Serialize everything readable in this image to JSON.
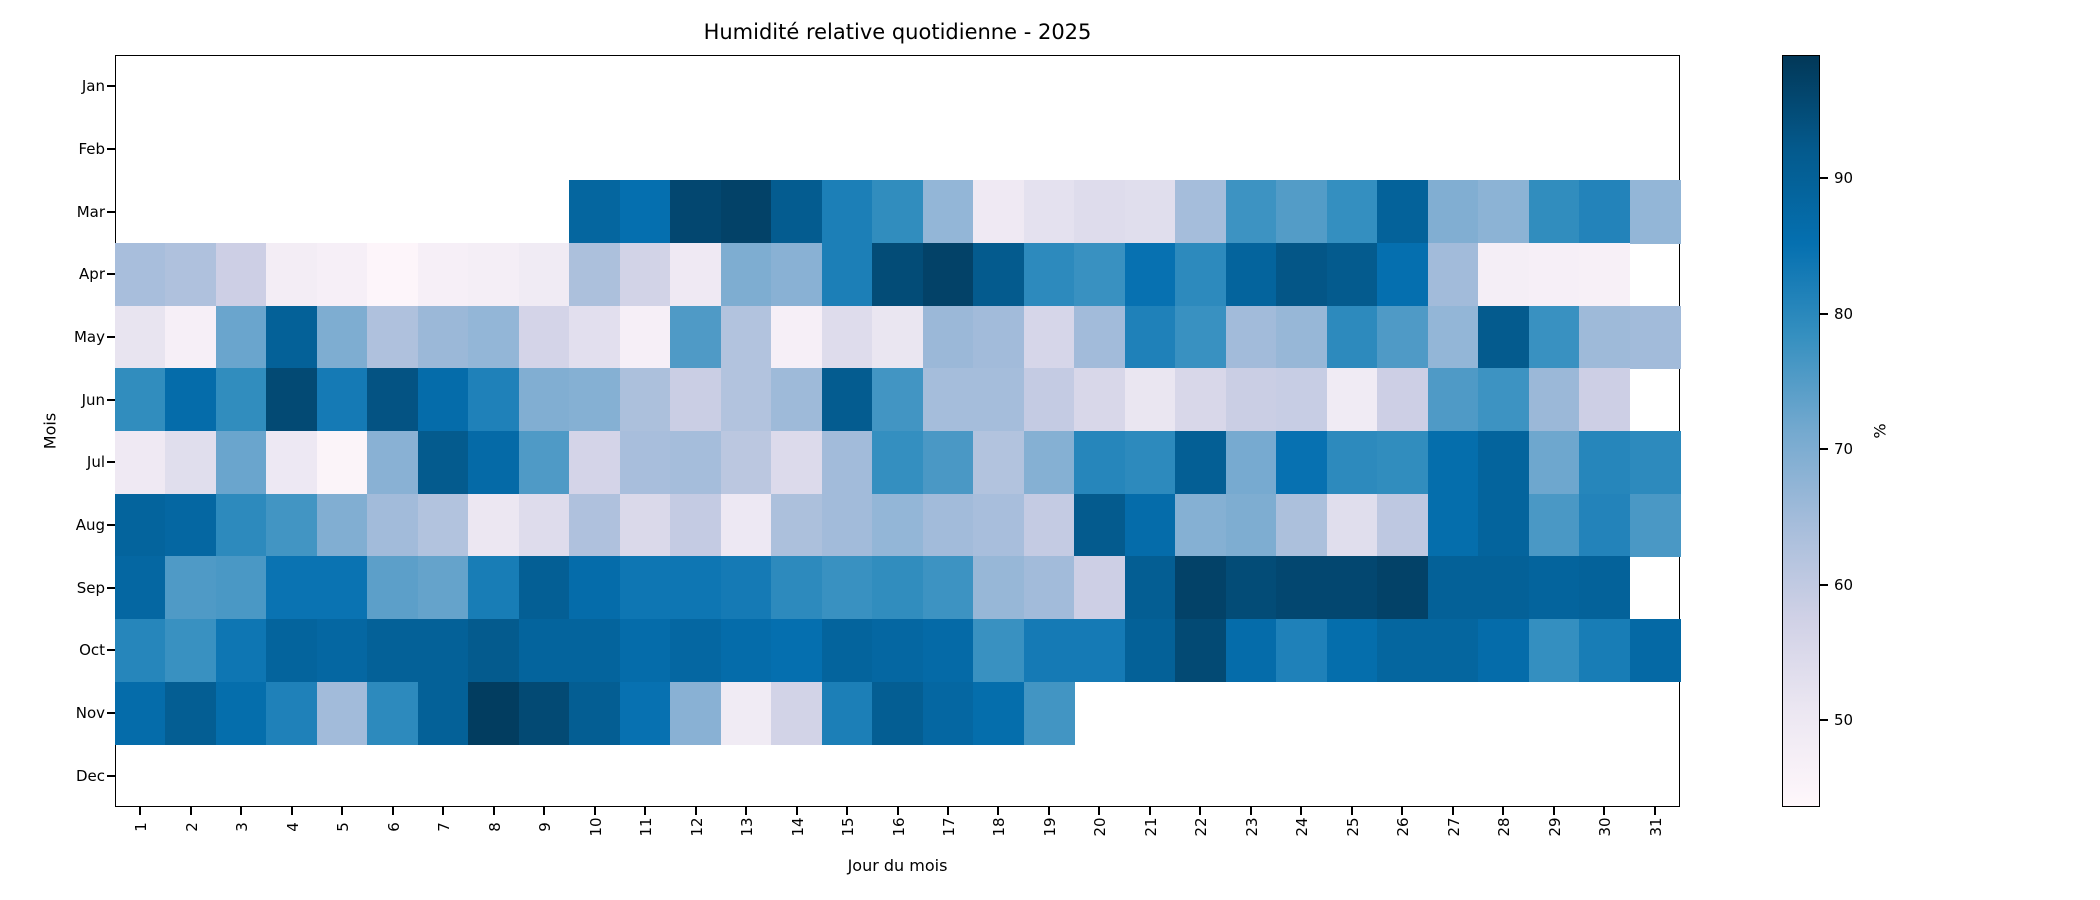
{
  "chart_data": {
    "type": "heatmap",
    "title": "Humidité relative quotidienne - 2025",
    "xlabel": "Jour du mois",
    "ylabel": "Mois",
    "x_ticks": [
      1,
      2,
      3,
      4,
      5,
      6,
      7,
      8,
      9,
      10,
      11,
      12,
      13,
      14,
      15,
      16,
      17,
      18,
      19,
      20,
      21,
      22,
      23,
      24,
      25,
      26,
      27,
      28,
      29,
      30,
      31
    ],
    "y_ticks": [
      "Jan",
      "Feb",
      "Mar",
      "Apr",
      "May",
      "Jun",
      "Jul",
      "Aug",
      "Sep",
      "Oct",
      "Nov",
      "Dec"
    ],
    "grid": false,
    "missing_color": "#ffffff",
    "colorbar": {
      "label": "%",
      "ticks": [
        50,
        60,
        70,
        80,
        90
      ],
      "vmin": 43.6,
      "vmax": 99.1,
      "colormap": "PuBu",
      "colormap_stops": [
        "#fff7fb",
        "#ece7f2",
        "#d0d1e6",
        "#a6bddb",
        "#74a9cf",
        "#3690c0",
        "#0570b0",
        "#045a8d",
        "#023858"
      ]
    },
    "values": [
      [
        null,
        null,
        null,
        null,
        null,
        null,
        null,
        null,
        null,
        null,
        null,
        null,
        null,
        null,
        null,
        null,
        null,
        null,
        null,
        null,
        null,
        null,
        null,
        null,
        null,
        null,
        null,
        null,
        null,
        null,
        null
      ],
      [
        null,
        null,
        null,
        null,
        null,
        null,
        null,
        null,
        null,
        null,
        null,
        null,
        null,
        null,
        null,
        null,
        null,
        null,
        null,
        null,
        null,
        null,
        null,
        null,
        null,
        null,
        null,
        null,
        null,
        null,
        null
      ],
      [
        null,
        null,
        null,
        null,
        null,
        null,
        null,
        null,
        null,
        88.5,
        85.5,
        96,
        97,
        91.5,
        82,
        79,
        67,
        49.5,
        52.5,
        54,
        53.5,
        64.5,
        77.5,
        75,
        78.5,
        89.5,
        69.5,
        68,
        79,
        81,
        67
      ],
      [
        64,
        63,
        58,
        48,
        47,
        44.5,
        47,
        47.5,
        49,
        63.5,
        57,
        49.5,
        70,
        68.5,
        82,
        95,
        97,
        92,
        79.5,
        78,
        85,
        79.5,
        89,
        93,
        92,
        85.5,
        65,
        47.5,
        47,
        46.5,
        null
      ],
      [
        51.5,
        47,
        72.5,
        90,
        70,
        63,
        66,
        67,
        56.5,
        53,
        47,
        75.5,
        62.5,
        47,
        54,
        51,
        66,
        65,
        56,
        65,
        81.5,
        78,
        65,
        66.5,
        79.5,
        75.5,
        67,
        92,
        78,
        65.5,
        65
      ],
      [
        79,
        86.5,
        79,
        95.5,
        83,
        93.5,
        86.5,
        81.5,
        69.5,
        69,
        63.5,
        58.5,
        62.5,
        65.5,
        91.5,
        77,
        64.5,
        64.5,
        59.5,
        55.5,
        51,
        55.5,
        58.5,
        59,
        49,
        58,
        75.5,
        77.5,
        66,
        58,
        null
      ],
      [
        49.5,
        53.5,
        72.5,
        50,
        45,
        68.5,
        92,
        87,
        75.5,
        56.5,
        64,
        64.5,
        61,
        54.5,
        65,
        78.5,
        76,
        62.5,
        69,
        80.5,
        79.5,
        90.5,
        71,
        85,
        79.5,
        79,
        86,
        89,
        72,
        80.5,
        79.5
      ],
      [
        89,
        88,
        79.5,
        77,
        69.5,
        65,
        62.5,
        50.5,
        54,
        63,
        55,
        59.5,
        50,
        63.5,
        65,
        67,
        65,
        64,
        59.5,
        92,
        86.5,
        69,
        70,
        63.5,
        53.5,
        60.5,
        86,
        89,
        76,
        81,
        76
      ],
      [
        88,
        75.5,
        76,
        84.5,
        84.5,
        74,
        73,
        82.5,
        90.5,
        86.5,
        84,
        84,
        83,
        79.5,
        78,
        79,
        77.5,
        66.5,
        65,
        58,
        91,
        97,
        95,
        96,
        96,
        97,
        90,
        90,
        89,
        89.5,
        null
      ],
      [
        80.5,
        78,
        84,
        89,
        88,
        90,
        90,
        92,
        89,
        89,
        86.5,
        88,
        86.5,
        85.5,
        89,
        88,
        87,
        78,
        83,
        83,
        90,
        95.5,
        86.5,
        81.5,
        86,
        88.5,
        88.5,
        86.5,
        78.5,
        82.5,
        87.5
      ],
      [
        86.5,
        91,
        86,
        81.5,
        65,
        79.5,
        90,
        98,
        95.5,
        91,
        85,
        68.5,
        49,
        57,
        82,
        91,
        88,
        86,
        77,
        null,
        null,
        null,
        null,
        null,
        null,
        null,
        null,
        null,
        null,
        null,
        null
      ],
      [
        null,
        null,
        null,
        null,
        null,
        null,
        null,
        null,
        null,
        null,
        null,
        null,
        null,
        null,
        null,
        null,
        null,
        null,
        null,
        null,
        null,
        null,
        null,
        null,
        null,
        null,
        null,
        null,
        null,
        null,
        null
      ]
    ]
  }
}
